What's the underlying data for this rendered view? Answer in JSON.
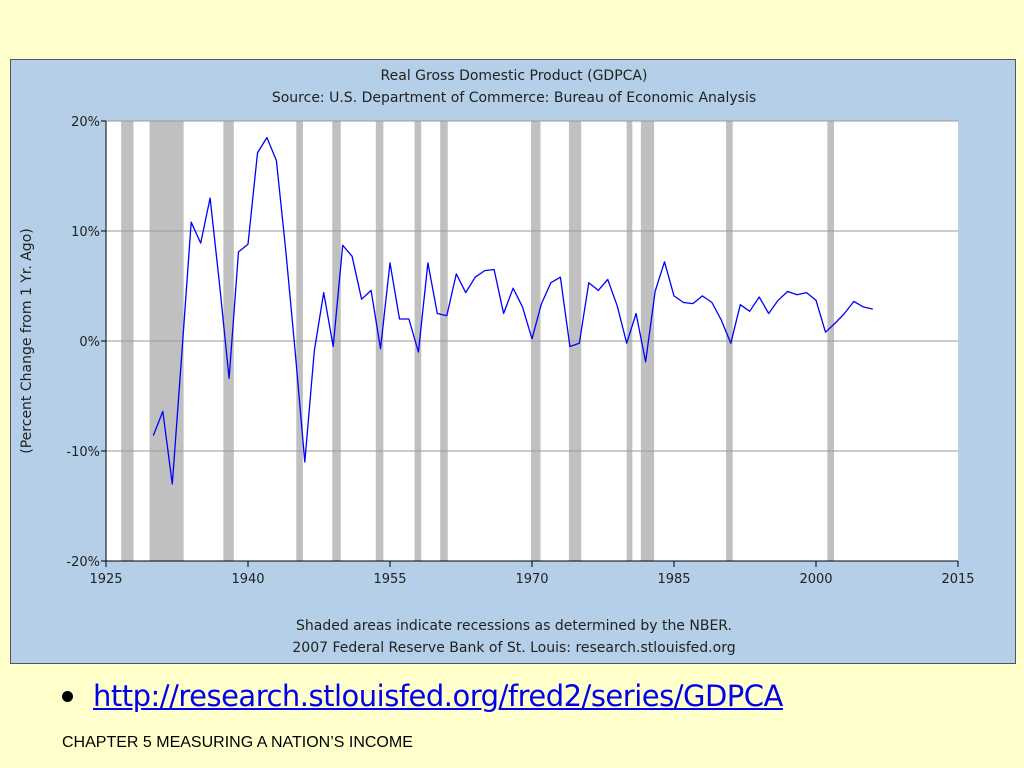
{
  "chart_data": {
    "type": "line",
    "title": "Real Gross Domestic Product (GDPCA)",
    "subtitle": "Source: U.S. Department of Commerce: Bureau of Economic Analysis",
    "ylabel": "(Percent Change from 1 Yr. Ago)",
    "xlabel": "",
    "xlim": [
      1925,
      2015
    ],
    "ylim": [
      -20,
      20
    ],
    "x_ticks": [
      1925,
      1940,
      1955,
      1970,
      1985,
      2000,
      2015
    ],
    "x_tick_labels": [
      "1925",
      "1940",
      "1955",
      "1970",
      "1985",
      "2000",
      "2015"
    ],
    "y_ticks": [
      20,
      10,
      0,
      -10,
      -20
    ],
    "y_tick_labels": [
      "20%",
      "10%",
      "0%",
      "-10%",
      "-20%"
    ],
    "grid": true,
    "line_color": "#0000ff",
    "recession_color": "#c0c0c0",
    "recessions": [
      [
        1926.6,
        1927.9
      ],
      [
        1929.6,
        1933.2
      ],
      [
        1937.4,
        1938.5
      ],
      [
        1945.1,
        1945.8
      ],
      [
        1948.9,
        1949.8
      ],
      [
        1953.5,
        1954.3
      ],
      [
        1957.6,
        1958.3
      ],
      [
        1960.3,
        1961.1
      ],
      [
        1969.9,
        1970.9
      ],
      [
        1973.9,
        1975.2
      ],
      [
        1980.0,
        1980.6
      ],
      [
        1981.5,
        1982.9
      ],
      [
        1990.5,
        1991.2
      ],
      [
        2001.2,
        2001.9
      ]
    ],
    "series": [
      {
        "x": [
          1930,
          1931,
          1932,
          1933,
          1934,
          1935,
          1936,
          1937,
          1938,
          1939,
          1940,
          1941,
          1942,
          1943,
          1944,
          1945,
          1946,
          1947,
          1948,
          1949,
          1950,
          1951,
          1952,
          1953,
          1954,
          1955,
          1956,
          1957,
          1958,
          1959,
          1960,
          1961,
          1962,
          1963,
          1964,
          1965,
          1966,
          1967,
          1968,
          1969,
          1970,
          1971,
          1972,
          1973,
          1974,
          1975,
          1976,
          1977,
          1978,
          1979,
          1980,
          1981,
          1982,
          1983,
          1984,
          1985,
          1986,
          1987,
          1988,
          1989,
          1990,
          1991,
          1992,
          1993,
          1994,
          1995,
          1996,
          1997,
          1998,
          1999,
          2000,
          2001,
          2002,
          2003,
          2004,
          2005,
          2006
        ],
        "values": [
          -8.6,
          -6.4,
          -13.0,
          -1.3,
          10.8,
          8.9,
          13.0,
          5.1,
          -3.4,
          8.1,
          8.8,
          17.1,
          18.5,
          16.4,
          8.1,
          -1.1,
          -11.0,
          -0.9,
          4.4,
          -0.5,
          8.7,
          7.7,
          3.8,
          4.6,
          -0.7,
          7.1,
          2.0,
          2.0,
          -1.0,
          7.1,
          2.5,
          2.3,
          6.1,
          4.4,
          5.8,
          6.4,
          6.5,
          2.5,
          4.8,
          3.1,
          0.2,
          3.4,
          5.3,
          5.8,
          -0.5,
          -0.2,
          5.3,
          4.6,
          5.6,
          3.2,
          -0.2,
          2.5,
          -1.9,
          4.5,
          7.2,
          4.1,
          3.5,
          3.4,
          4.1,
          3.5,
          1.9,
          -0.2,
          3.3,
          2.7,
          4.0,
          2.5,
          3.7,
          4.5,
          4.2,
          4.4,
          3.7,
          0.8,
          1.6,
          2.5,
          3.6,
          3.1,
          2.9
        ]
      }
    ],
    "notes": [
      "Shaded areas indicate recessions as determined by the NBER.",
      "2007 Federal Reserve Bank of St. Louis: research.stlouisfed.org"
    ]
  },
  "colors": {
    "page_background": "#ffffcc",
    "panel_background": "#b4cfe7",
    "plot_background": "#ffffff"
  },
  "source_link": "http://research.stlouisfed.org/fred2/series/GDPCA",
  "footer_caption": "CHAPTER 5 MEASURING A NATION’S INCOME"
}
